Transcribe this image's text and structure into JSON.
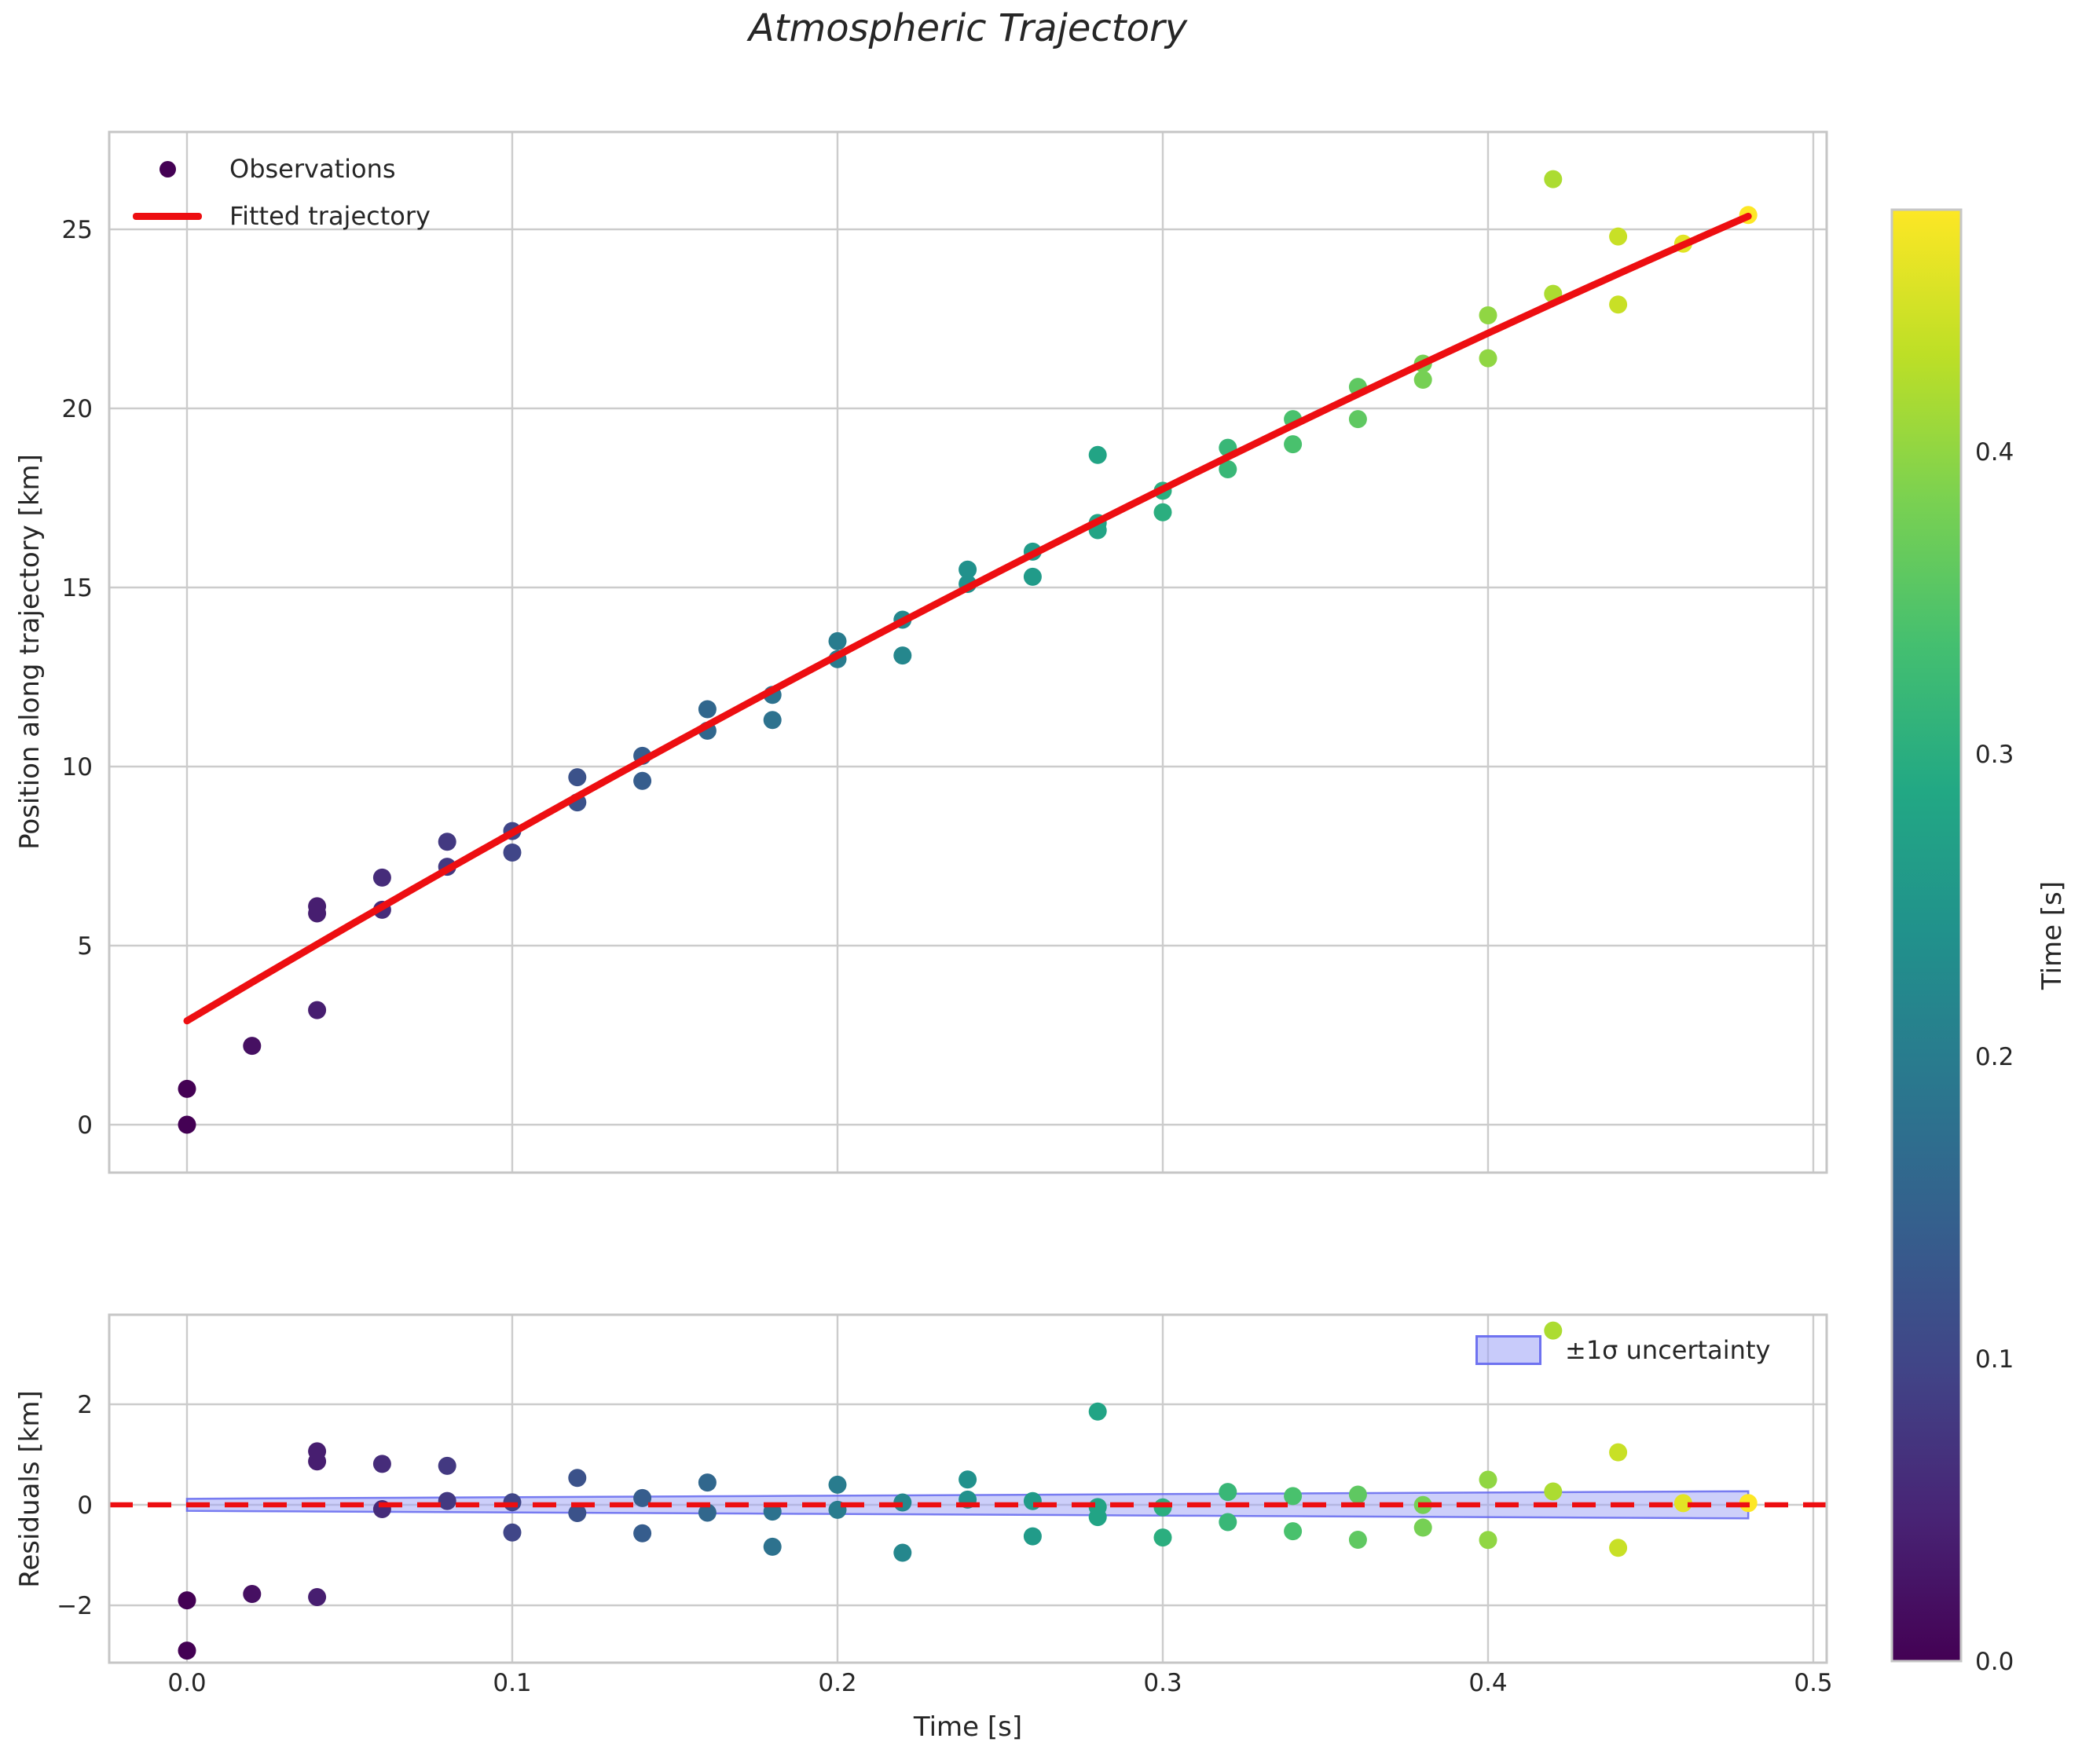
{
  "figure": {
    "title": "Atmospheric Trajectory",
    "background": "#ffffff",
    "text_color": "#262626",
    "grid_color": "#cccccc",
    "spine_color": "#c6c6c6"
  },
  "chart_data": [
    {
      "type": "scatter",
      "title": "Atmospheric Trajectory",
      "xlabel": "",
      "ylabel": "Position along trajectory [km]",
      "xlim": [
        -0.024,
        0.504
      ],
      "ylim": [
        -1.34,
        27.7
      ],
      "grid": true,
      "x_ticks": {
        "values": [
          0,
          0.1,
          0.2,
          0.3,
          0.4,
          0.5
        ],
        "labels": [
          "0.0",
          "0.1",
          "0.2",
          "0.3",
          "0.4",
          "0.5"
        ],
        "labels_shown": false
      },
      "y_ticks": {
        "values": [
          0,
          5,
          10,
          15,
          20,
          25
        ],
        "labels": [
          "0",
          "5",
          "10",
          "15",
          "20",
          "25"
        ]
      },
      "legend": {
        "position": "upper left",
        "entries": [
          {
            "label": "Observations",
            "marker": "dot",
            "color": "#440154"
          },
          {
            "label": "Fitted trajectory",
            "marker": "line",
            "color": "#ed0e11"
          }
        ]
      },
      "series": [
        {
          "name": "Observations",
          "type": "scatter",
          "colored_by": "time (viridis colormap)",
          "points_t_pos_km": [
            [
              0.0,
              0.0
            ],
            [
              0.0,
              1.0
            ],
            [
              0.02,
              2.2
            ],
            [
              0.04,
              3.2
            ],
            [
              0.04,
              5.9
            ],
            [
              0.04,
              6.1
            ],
            [
              0.06,
              6.0
            ],
            [
              0.06,
              6.9
            ],
            [
              0.08,
              7.2
            ],
            [
              0.08,
              7.9
            ],
            [
              0.1,
              7.6
            ],
            [
              0.1,
              8.2
            ],
            [
              0.12,
              9.0
            ],
            [
              0.12,
              9.7
            ],
            [
              0.14,
              9.6
            ],
            [
              0.14,
              10.3
            ],
            [
              0.16,
              11.0
            ],
            [
              0.16,
              11.6
            ],
            [
              0.18,
              11.3
            ],
            [
              0.18,
              12.0
            ],
            [
              0.2,
              13.0
            ],
            [
              0.2,
              13.5
            ],
            [
              0.22,
              13.1
            ],
            [
              0.22,
              14.1
            ],
            [
              0.24,
              15.1
            ],
            [
              0.24,
              15.5
            ],
            [
              0.26,
              15.3
            ],
            [
              0.26,
              16.0
            ],
            [
              0.28,
              16.6
            ],
            [
              0.28,
              16.8
            ],
            [
              0.28,
              18.7
            ],
            [
              0.3,
              17.1
            ],
            [
              0.3,
              17.7
            ],
            [
              0.32,
              18.3
            ],
            [
              0.32,
              18.9
            ],
            [
              0.34,
              19.0
            ],
            [
              0.34,
              19.7
            ],
            [
              0.36,
              19.7
            ],
            [
              0.36,
              20.6
            ],
            [
              0.38,
              20.8
            ],
            [
              0.38,
              21.25
            ],
            [
              0.4,
              21.4
            ],
            [
              0.4,
              22.6
            ],
            [
              0.42,
              23.2
            ],
            [
              0.42,
              26.4
            ],
            [
              0.44,
              22.9
            ],
            [
              0.44,
              24.8
            ],
            [
              0.46,
              24.6
            ],
            [
              0.48,
              25.4
            ]
          ]
        },
        {
          "name": "Fitted trajectory",
          "type": "line",
          "color": "#ed0e11",
          "fit": {
            "model": "quadratic",
            "intercept": 2.9,
            "slope": 54.0,
            "quad": -15.0,
            "t_min": 0.0,
            "t_max": 0.48
          }
        }
      ]
    },
    {
      "type": "scatter",
      "title": "",
      "xlabel": "Time [s]",
      "ylabel": "Residuals [km]",
      "xlim": [
        -0.024,
        0.504
      ],
      "ylim": [
        -3.15,
        3.78
      ],
      "grid": true,
      "x_ticks": {
        "values": [
          0,
          0.1,
          0.2,
          0.3,
          0.4,
          0.5
        ],
        "labels": [
          "0.0",
          "0.1",
          "0.2",
          "0.3",
          "0.4",
          "0.5"
        ],
        "labels_shown": true
      },
      "y_ticks": {
        "values": [
          -2,
          0,
          2
        ],
        "labels": [
          "−2",
          "0",
          "2"
        ]
      },
      "zero_line": {
        "y": 0,
        "style": "dashed",
        "color": "#ed0e11"
      },
      "uncertainty_band": {
        "label": "±1σ uncertainty",
        "t_min": 0.0,
        "t_max": 0.48,
        "halfwidth_km_at_t0": 0.12,
        "halfwidth_km_at_tmax": 0.27,
        "fill": "#9ba0f5",
        "edge": "#6468ee"
      },
      "residuals_definition": "observation position minus fitted trajectory, colored by time (viridis)"
    }
  ],
  "colorbar": {
    "label": "Time [s]",
    "vmin": 0.0,
    "vmax": 0.48,
    "ticks": {
      "values": [
        0.0,
        0.1,
        0.2,
        0.3,
        0.4
      ],
      "labels": [
        "0.0",
        "0.1",
        "0.2",
        "0.3",
        "0.4"
      ]
    },
    "colormap": "viridis",
    "colormap_stops": [
      [
        0.0,
        "#440154"
      ],
      [
        0.1,
        "#482475"
      ],
      [
        0.2,
        "#414487"
      ],
      [
        0.3,
        "#355f8d"
      ],
      [
        0.4,
        "#2a788e"
      ],
      [
        0.5,
        "#21918c"
      ],
      [
        0.6,
        "#22a884"
      ],
      [
        0.7,
        "#44bf70"
      ],
      [
        0.8,
        "#7ad151"
      ],
      [
        0.9,
        "#bddf26"
      ],
      [
        1.0,
        "#fde725"
      ]
    ]
  }
}
